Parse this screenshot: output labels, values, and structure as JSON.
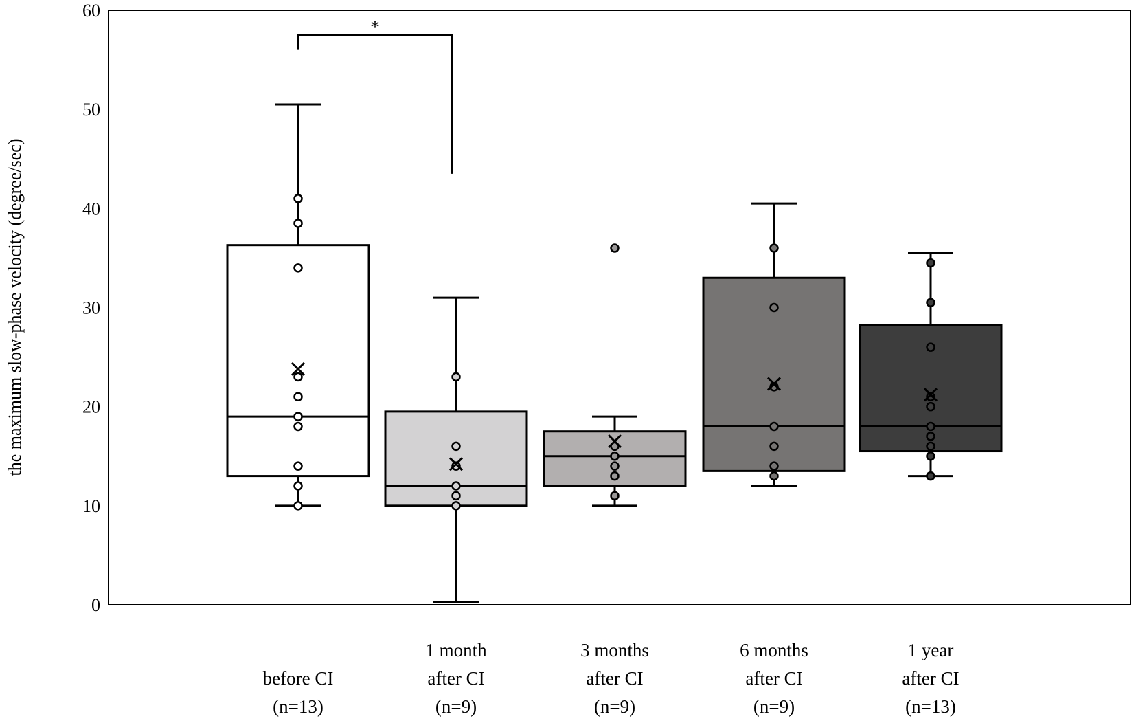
{
  "chart_data": {
    "type": "box",
    "ylabel": "the maximum slow-phase velocity (degree/sec)",
    "ylim": [
      0,
      60
    ],
    "yticks": [
      0,
      10,
      20,
      30,
      40,
      50,
      60
    ],
    "grid": false,
    "legend": "none",
    "categories": [
      {
        "lines": [
          "before CI",
          "(n=13)"
        ]
      },
      {
        "lines": [
          "1 month",
          "after CI",
          "(n=9)"
        ]
      },
      {
        "lines": [
          "3 months",
          "after CI",
          "(n=9)"
        ]
      },
      {
        "lines": [
          "6 months",
          "after CI",
          "(n=9)"
        ]
      },
      {
        "lines": [
          "1 year",
          "after CI",
          "(n=13)"
        ]
      }
    ],
    "boxes": [
      {
        "fill": "#ffffff",
        "whisker_low": 10,
        "q1": 13,
        "median": 19,
        "q3": 36.3,
        "whisker_high": 50.5,
        "mean": 23.8,
        "points": [
          10,
          12,
          14,
          18,
          19,
          21,
          23,
          34,
          38.5,
          41
        ],
        "point_fill": "#ffffff"
      },
      {
        "fill": "#d3d2d3",
        "whisker_low": 0.3,
        "q1": 10,
        "median": 12,
        "q3": 19.5,
        "whisker_high": 31,
        "mean": 14.2,
        "points": [
          10,
          11,
          12,
          14,
          16,
          23
        ],
        "point_fill": "#d3d2d3"
      },
      {
        "fill": "#b2afaf",
        "whisker_low": 10,
        "q1": 12,
        "median": 15,
        "q3": 17.5,
        "whisker_high": 19,
        "mean": 16.5,
        "points": [
          11,
          13,
          14,
          15,
          16,
          36
        ],
        "point_fill": "#9a9898"
      },
      {
        "fill": "#767473",
        "whisker_low": 12,
        "q1": 13.5,
        "median": 18,
        "q3": 33,
        "whisker_high": 40.5,
        "mean": 22.3,
        "points": [
          13,
          14,
          16,
          18,
          22,
          30,
          36
        ],
        "point_fill": "#767473"
      },
      {
        "fill": "#3d3d3d",
        "whisker_low": 13,
        "q1": 15.5,
        "median": 18,
        "q3": 28.2,
        "whisker_high": 35.5,
        "mean": 21.2,
        "points": [
          13,
          15,
          16,
          17,
          18,
          20,
          21,
          26,
          30.5,
          34.5
        ],
        "point_fill": "#3d3d3d"
      }
    ],
    "significance": {
      "from": 0,
      "to": 1,
      "label": "*",
      "y": 57.5,
      "left_end": 56,
      "right_end": 43.5
    }
  }
}
